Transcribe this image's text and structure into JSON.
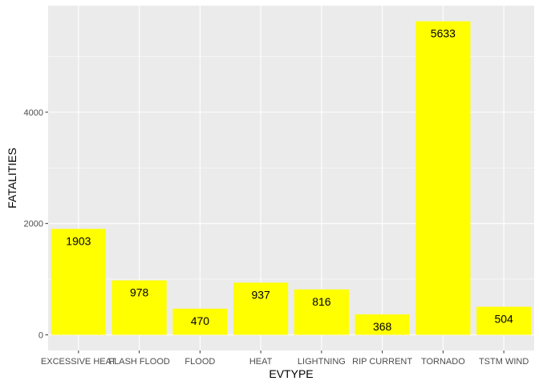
{
  "chart_data": {
    "type": "bar",
    "categories": [
      "EXCESSIVE HEAT",
      "FLASH FLOOD",
      "FLOOD",
      "HEAT",
      "LIGHTNING",
      "RIP CURRENT",
      "TORNADO",
      "TSTM WIND"
    ],
    "values": [
      1903,
      978,
      470,
      937,
      816,
      368,
      5633,
      504
    ],
    "data_labels": [
      "1903",
      "978",
      "470",
      "937",
      "816",
      "368",
      "5633",
      "504"
    ],
    "xlabel": "EVTYPE",
    "ylabel": "FATALITIES",
    "ylim": [
      -282,
      5915
    ],
    "y_ticks": [
      0,
      2000,
      4000
    ],
    "y_tick_labels": [
      "0",
      "2000",
      "4000"
    ],
    "grid": true,
    "colors": {
      "bar": "#ffff00",
      "panel": "#ebebeb",
      "grid": "#ffffff"
    }
  }
}
